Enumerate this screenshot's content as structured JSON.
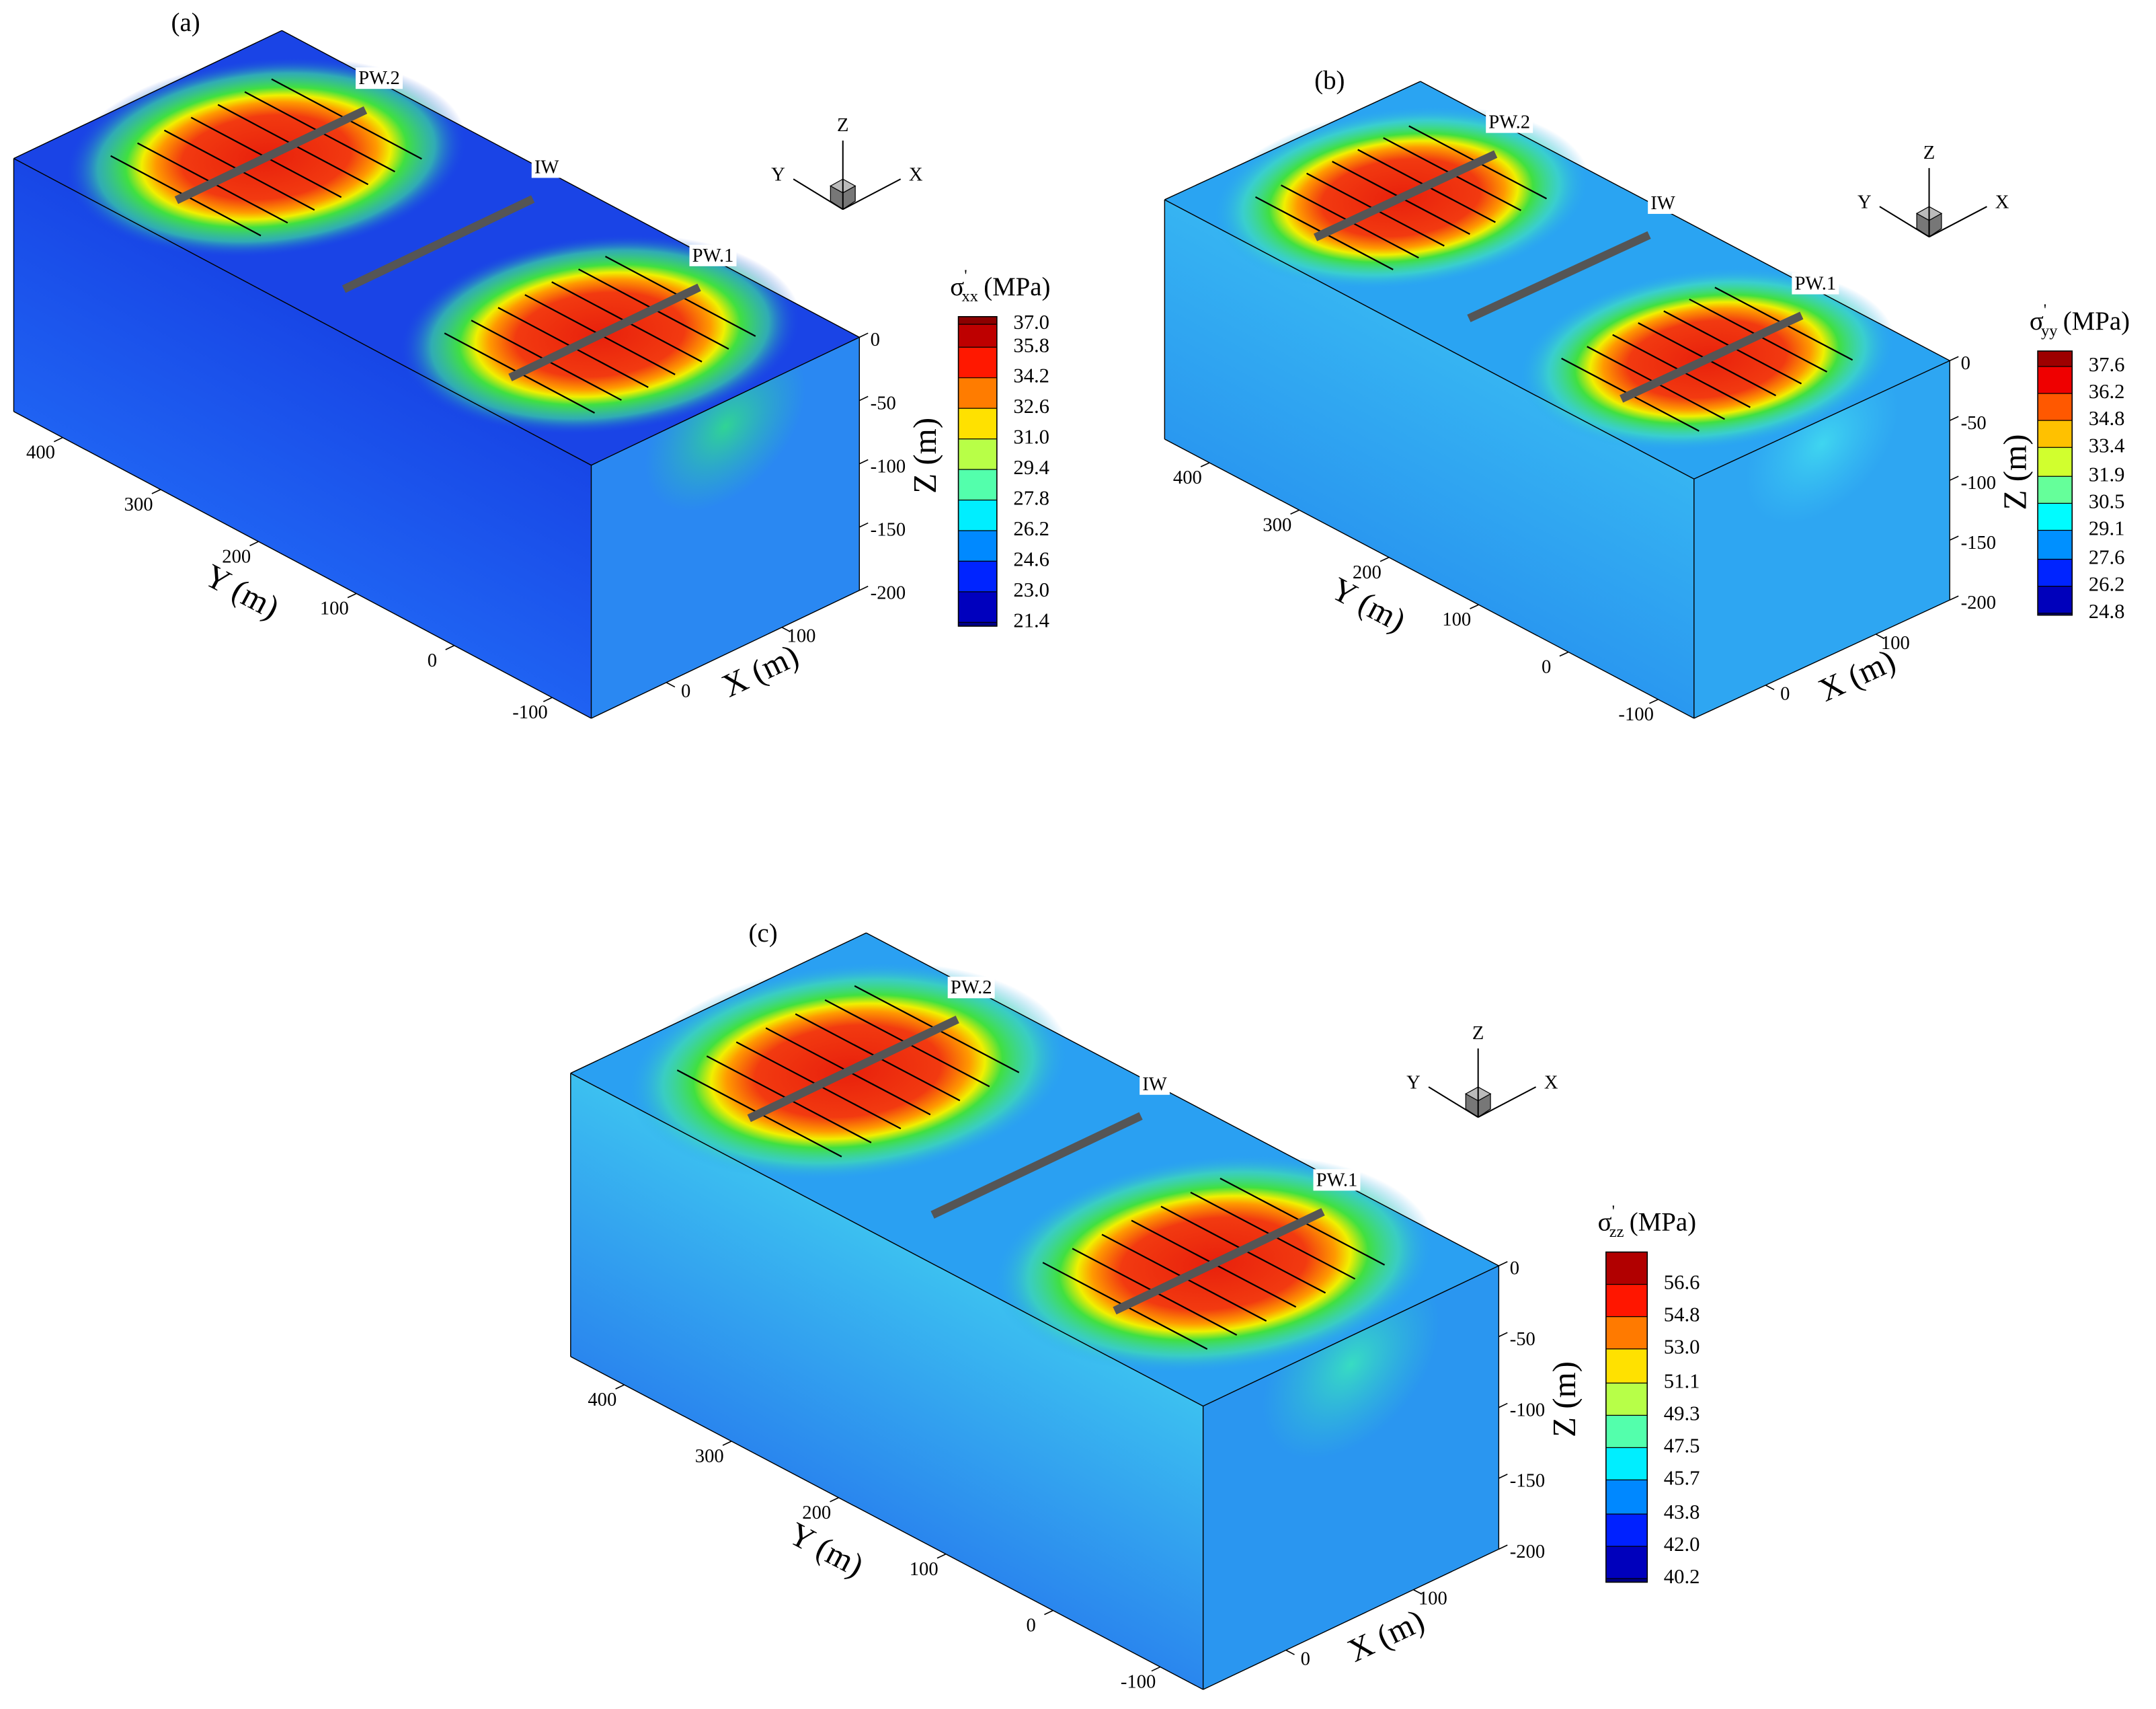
{
  "chart_data": [
    {
      "type": "contour",
      "panel_label": "(a)",
      "colorbar_symbol": "σ",
      "colorbar_prime": "'",
      "colorbar_subscript": "xx",
      "colorbar_unit": "(MPa)",
      "clim": [
        21.2,
        37.4
      ],
      "cticks": [
        {
          "value": 37,
          "label": "37.0"
        },
        35.8,
        34.2,
        32.6,
        {
          "value": 31,
          "label": "31.0"
        },
        29.4,
        27.8,
        26.2,
        24.6,
        {
          "value": 23,
          "label": "23.0"
        },
        21.4
      ],
      "xlabel": "X (m)",
      "ylabel": "Y (m)",
      "zlabel": "Z (m)",
      "xlim": [
        -65,
        167
      ],
      "xticks": [
        0,
        100
      ],
      "ylim": [
        -140,
        450
      ],
      "yticks": [
        400,
        300,
        200,
        100,
        0,
        -100
      ],
      "zlim": [
        -200,
        0
      ],
      "zticks": [
        0,
        -50,
        -100,
        -150,
        -200
      ],
      "wells": [
        "PW.2",
        "IW",
        "PW.1"
      ],
      "triad": [
        "Z",
        "Y",
        "X"
      ]
    },
    {
      "type": "contour",
      "panel_label": "(b)",
      "colorbar_symbol": "σ",
      "colorbar_prime": "'",
      "colorbar_subscript": "yy",
      "colorbar_unit": "(MPa)",
      "clim": [
        24.7,
        38.4
      ],
      "cticks": [
        37.6,
        36.2,
        34.8,
        33.4,
        31.9,
        30.5,
        29.1,
        27.6,
        26.2,
        24.8
      ],
      "xlabel": "X (m)",
      "ylabel": "Y (m)",
      "zlabel": "Z (m)",
      "xlim": [
        -65,
        167
      ],
      "xticks": [
        0,
        100
      ],
      "ylim": [
        -140,
        450
      ],
      "yticks": [
        400,
        300,
        200,
        100,
        0,
        -100
      ],
      "zlim": [
        -200,
        0
      ],
      "zticks": [
        0,
        -50,
        -100,
        -150,
        -200
      ],
      "wells": [
        "PW.2",
        "IW",
        "PW.1"
      ],
      "triad": [
        "Z",
        "Y",
        "X"
      ]
    },
    {
      "type": "contour",
      "panel_label": "(c)",
      "colorbar_symbol": "σ",
      "colorbar_prime": "'",
      "colorbar_subscript": "zz",
      "colorbar_unit": "(MPa)",
      "clim": [
        40.0,
        58.4
      ],
      "cticks": [
        56.6,
        54.8,
        {
          "value": 53,
          "label": "53.0"
        },
        51.1,
        49.3,
        47.5,
        45.7,
        43.8,
        {
          "value": 42,
          "label": "42.0"
        },
        40.2
      ],
      "xlabel": "X (m)",
      "ylabel": "Y (m)",
      "zlabel": "Z (m)",
      "xlim": [
        -65,
        167
      ],
      "xticks": [
        0,
        100
      ],
      "ylim": [
        -140,
        450
      ],
      "yticks": [
        400,
        300,
        200,
        100,
        0,
        -100
      ],
      "zlim": [
        -200,
        0
      ],
      "zticks": [
        0,
        -50,
        -100,
        -150,
        -200
      ],
      "wells": [
        "PW.2",
        "IW",
        "PW.1"
      ],
      "triad": [
        "Z",
        "Y",
        "X"
      ]
    }
  ]
}
